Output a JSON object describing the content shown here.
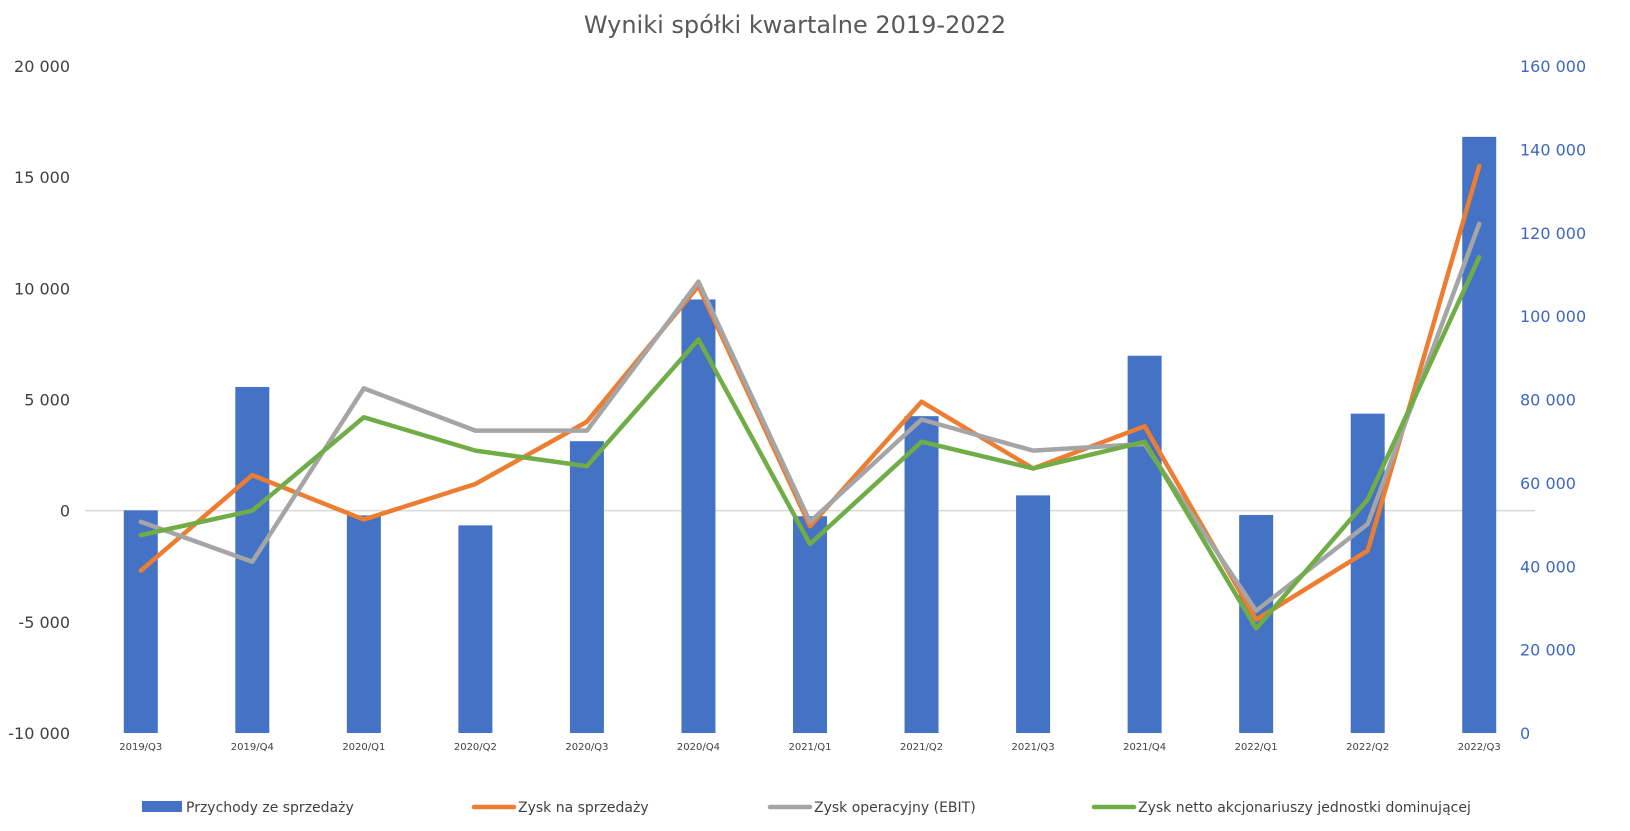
{
  "chart_data": {
    "type": "bar",
    "title": "Wyniki spółki kwartalne 2019-2022",
    "categories": [
      "2019/Q3",
      "2019/Q4",
      "2020/Q1",
      "2020/Q2",
      "2020/Q3",
      "2020/Q4",
      "2021/Q1",
      "2021/Q2",
      "2021/Q3",
      "2021/Q4",
      "2022/Q1",
      "2022/Q2",
      "2022/Q3"
    ],
    "left_axis": {
      "ylim": [
        -10000,
        20000
      ],
      "ticks": [
        -10000,
        -5000,
        0,
        5000,
        10000,
        15000,
        20000
      ],
      "tick_labels": [
        "-10 000",
        "-5 000",
        "0",
        "5 000",
        "10 000",
        "15 000",
        "20 000"
      ]
    },
    "right_axis": {
      "ylim": [
        0,
        160000
      ],
      "ticks": [
        0,
        20000,
        40000,
        60000,
        80000,
        100000,
        120000,
        140000,
        160000
      ],
      "tick_labels": [
        "0",
        "20 000",
        "40 000",
        "60 000",
        "80 000",
        "100 000",
        "120 000",
        "140 000",
        "160 000"
      ],
      "color": "#4472C4"
    },
    "series": [
      {
        "name": "Przychody ze sprzedaży",
        "kind": "bar",
        "axis": "right",
        "color": "#4472C4",
        "values": [
          53400,
          83000,
          52200,
          49800,
          70000,
          104000,
          52000,
          76000,
          57000,
          90500,
          52300,
          76600,
          143000
        ]
      },
      {
        "name": "Zysk na sprzedaży",
        "kind": "line",
        "axis": "left",
        "color": "#ED7D31",
        "values": [
          -2700,
          1600,
          -400,
          1200,
          4000,
          10100,
          -700,
          4900,
          1900,
          3800,
          -4900,
          -1800,
          15500
        ]
      },
      {
        "name": "Zysk operacyjny (EBIT)",
        "kind": "line",
        "axis": "left",
        "color": "#A5A5A5",
        "values": [
          -500,
          -2300,
          5500,
          3600,
          3600,
          10300,
          -500,
          4100,
          2700,
          3000,
          -4500,
          -600,
          12900
        ]
      },
      {
        "name": "Zysk netto akcjonariuszy jednostki dominującej",
        "kind": "line",
        "axis": "left",
        "color": "#70AD47",
        "values": [
          -1100,
          0,
          4200,
          2700,
          2000,
          7700,
          -1500,
          3100,
          1900,
          3100,
          -5300,
          500,
          11400
        ]
      }
    ],
    "zero_line_color": "#D9D9D9",
    "legend_position": "bottom",
    "grid": false
  }
}
